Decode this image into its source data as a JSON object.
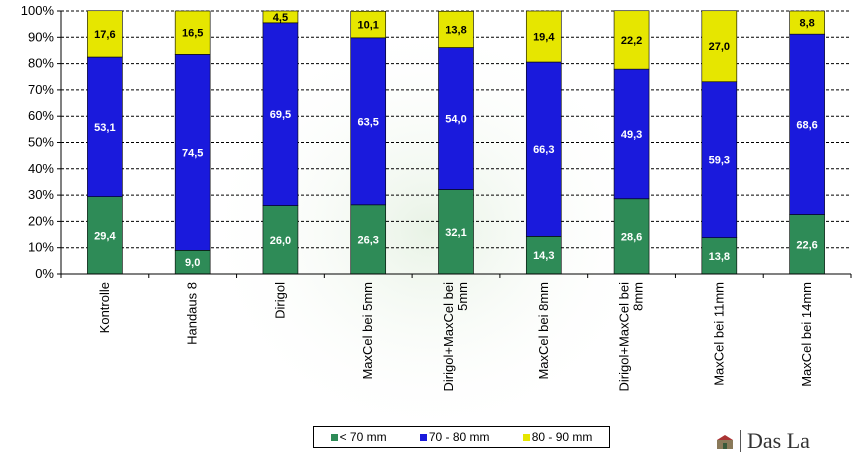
{
  "chart_data": {
    "type": "bar",
    "stacked": true,
    "percent_stacked": true,
    "categories": [
      "Kontrolle",
      "Handaus 8",
      "Dirigol",
      "MaxCel bei 5mm",
      "Dirigol+MaxCel bei 5mm",
      "MaxCel bei 8mm",
      "Dirigol+MaxCel bei 8mm",
      "MaxCel bei 11mm",
      "MaxCel bei 14mm"
    ],
    "category_label_lines": [
      [
        "Kontrolle"
      ],
      [
        "Handaus 8"
      ],
      [
        "Dirigol"
      ],
      [
        "MaxCel bei 5mm"
      ],
      [
        "Dirigol+MaxCel bei",
        "5mm"
      ],
      [
        "MaxCel bei 8mm"
      ],
      [
        "Dirigol+MaxCel bei",
        "8mm"
      ],
      [
        "MaxCel bei 11mm"
      ],
      [
        "MaxCel bei 14mm"
      ]
    ],
    "series": [
      {
        "name": "< 70 mm",
        "color": "#2e8b57",
        "values": [
          29.4,
          9.0,
          26.0,
          26.3,
          32.1,
          14.3,
          28.6,
          13.8,
          22.6
        ],
        "labels": [
          "29,4",
          "9,0",
          "26,0",
          "26,3",
          "32,1",
          "14,3",
          "28,6",
          "13,8",
          "22,6"
        ]
      },
      {
        "name": "70 - 80 mm",
        "color": "#1a1adc",
        "values": [
          53.1,
          74.5,
          69.5,
          63.5,
          54.0,
          66.3,
          49.3,
          59.3,
          68.6
        ],
        "labels": [
          "53,1",
          "74,5",
          "69,5",
          "63,5",
          "54,0",
          "66,3",
          "49,3",
          "59,3",
          "68,6"
        ]
      },
      {
        "name": "80 - 90 mm",
        "color": "#e6e600",
        "values": [
          17.6,
          16.5,
          4.5,
          10.1,
          13.8,
          19.4,
          22.2,
          27.0,
          8.8
        ],
        "labels": [
          "17,6",
          "16,5",
          "4,5",
          "10,1",
          "13,8",
          "19,4",
          "22,2",
          "27,0",
          "8,8"
        ]
      }
    ],
    "y_ticks": [
      "0%",
      "10%",
      "20%",
      "30%",
      "40%",
      "50%",
      "60%",
      "70%",
      "80%",
      "90%",
      "100%"
    ],
    "ylim": [
      0,
      100
    ],
    "grid": true,
    "grid_style": "dashed",
    "legend_position": "bottom",
    "title": "",
    "xlabel": "",
    "ylabel": ""
  },
  "logo": {
    "text": "Das La"
  }
}
